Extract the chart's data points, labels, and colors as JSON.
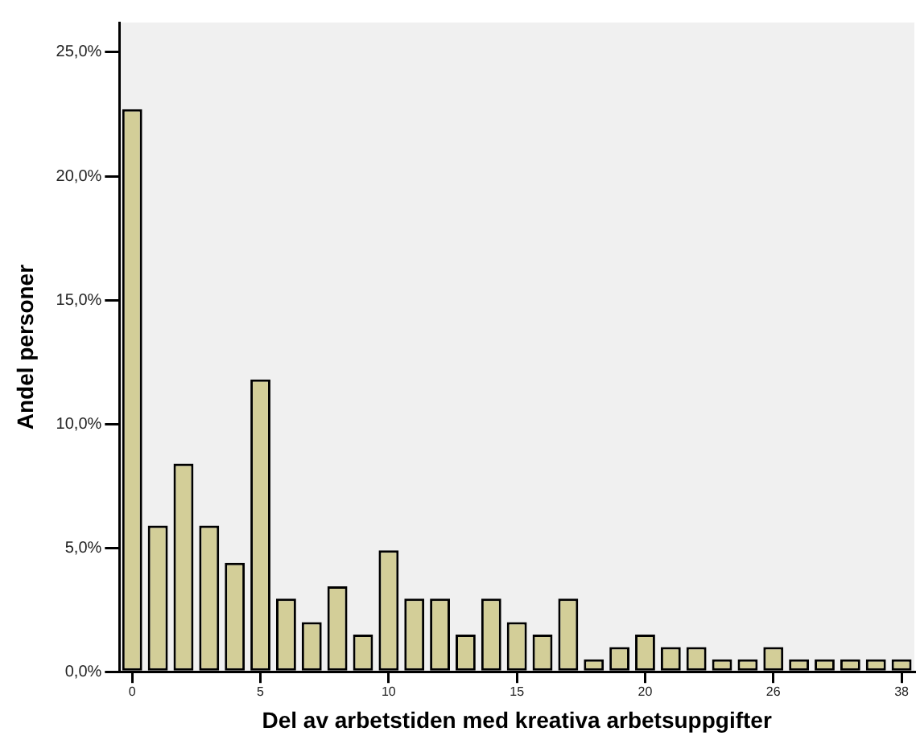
{
  "chart_data": {
    "type": "bar",
    "xlabel": "Del av arbetstiden med kreativa arbetsuppgifter",
    "ylabel": "Andel personer",
    "categories": [
      "0",
      null,
      null,
      null,
      null,
      "5",
      null,
      null,
      null,
      null,
      "10",
      null,
      null,
      null,
      null,
      "15",
      null,
      null,
      null,
      null,
      "20",
      null,
      null,
      null,
      null,
      "26",
      null,
      null,
      null,
      null,
      "38"
    ],
    "values": [
      22.7,
      5.9,
      8.4,
      5.9,
      4.4,
      11.8,
      2.95,
      2.0,
      3.45,
      1.5,
      4.9,
      2.95,
      2.95,
      1.5,
      2.95,
      2.0,
      1.5,
      2.95,
      0.5,
      1.0,
      1.5,
      1.0,
      1.0,
      0.5,
      0.5,
      1.0,
      0.5,
      0.5,
      0.5,
      0.5,
      0.5
    ],
    "color": "#d3ce98",
    "ylim": [
      0,
      26.2
    ],
    "yticks": [
      {
        "value": 0,
        "label": "0,0%"
      },
      {
        "value": 5,
        "label": "5,0%"
      },
      {
        "value": 10,
        "label": "10,0%"
      },
      {
        "value": 15,
        "label": "15,0%"
      },
      {
        "value": 20,
        "label": "20,0%"
      },
      {
        "value": 25,
        "label": "25,0%"
      }
    ],
    "grid": false,
    "legend": false
  }
}
